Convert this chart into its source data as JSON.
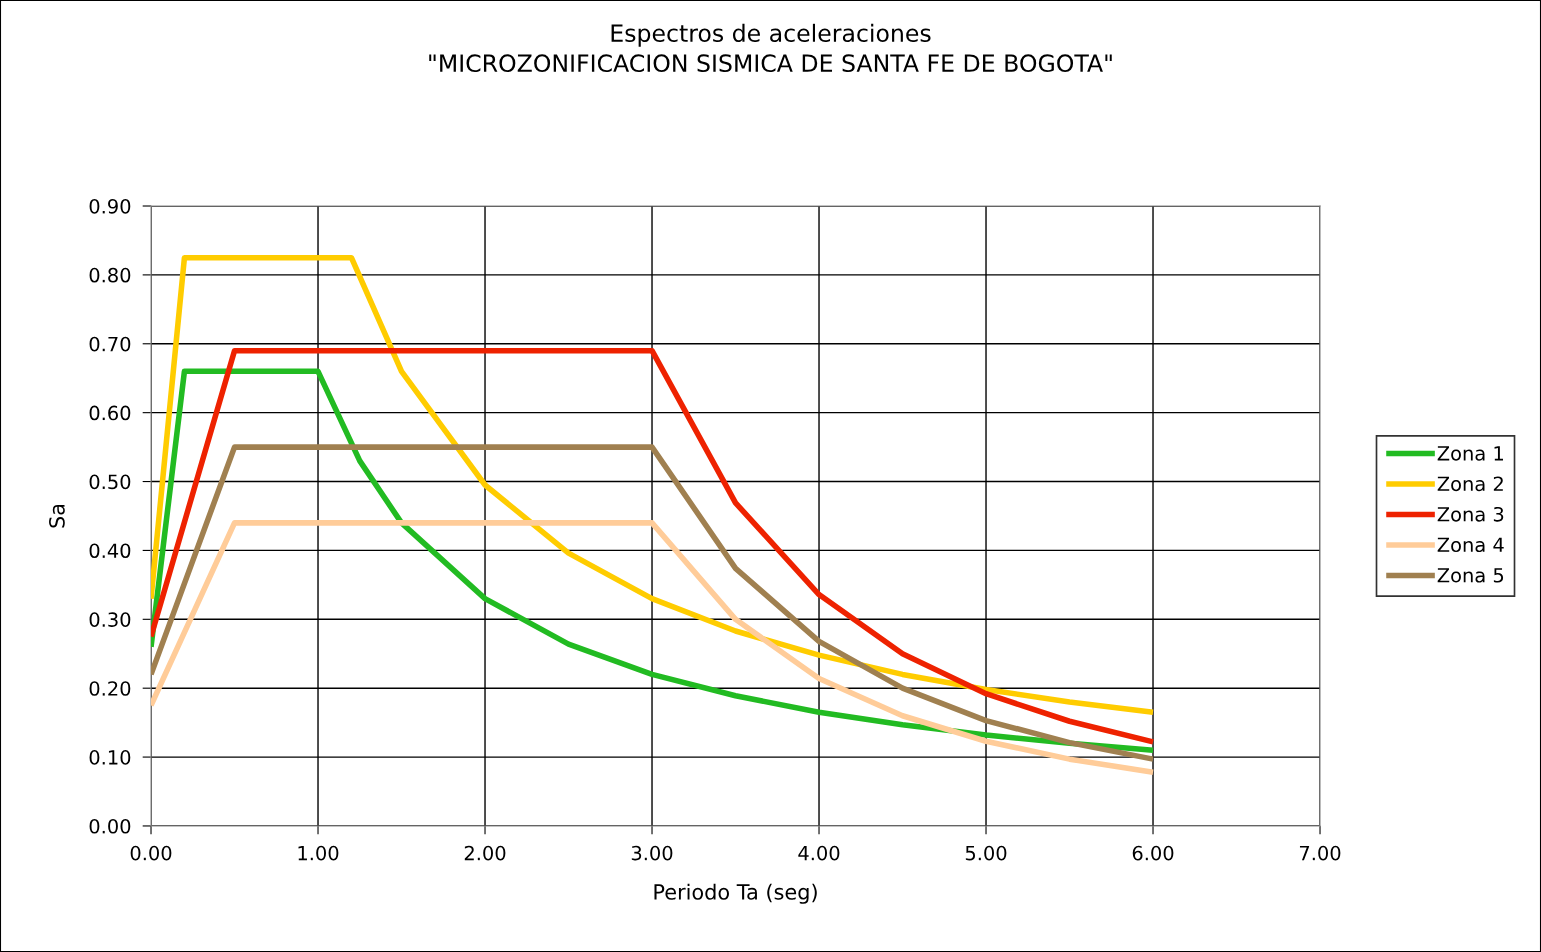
{
  "chart_data": {
    "type": "line",
    "title": "Espectros de aceleraciones\n\"MICROZONIFICACION SISMICA DE SANTA FE DE BOGOTA\"",
    "xlabel": "Periodo Ta (seg)",
    "ylabel": "Sa",
    "series": [
      {
        "name": "Zona 1",
        "color": "#22bb22",
        "x": [
          0,
          0.2,
          1.0,
          1.25,
          1.5,
          2.0,
          2.5,
          3.0,
          3.5,
          4.0,
          4.5,
          5.0,
          5.5,
          6.0
        ],
        "values": [
          0.26,
          0.66,
          0.66,
          0.53,
          0.44,
          0.33,
          0.264,
          0.22,
          0.189,
          0.165,
          0.147,
          0.132,
          0.12,
          0.11
        ]
      },
      {
        "name": "Zona 2",
        "color": "#ffcc00",
        "x": [
          0,
          0.2,
          1.2,
          1.5,
          2.0,
          2.5,
          3.0,
          3.5,
          4.0,
          4.5,
          5.0,
          5.5,
          6.0
        ],
        "values": [
          0.33,
          0.825,
          0.825,
          0.66,
          0.495,
          0.396,
          0.33,
          0.283,
          0.248,
          0.22,
          0.198,
          0.18,
          0.165
        ]
      },
      {
        "name": "Zona 3",
        "color": "#ee2200",
        "x": [
          0,
          0.5,
          3.0,
          3.5,
          4.0,
          4.5,
          5.0,
          5.5,
          6.0
        ],
        "values": [
          0.275,
          0.69,
          0.69,
          0.469,
          0.336,
          0.25,
          0.192,
          0.152,
          0.122
        ]
      },
      {
        "name": "Zona 4",
        "color": "#ffcc99",
        "x": [
          0,
          0.5,
          3.0,
          3.5,
          4.0,
          4.5,
          5.0,
          5.5,
          6.0
        ],
        "values": [
          0.175,
          0.44,
          0.44,
          0.3,
          0.214,
          0.16,
          0.123,
          0.097,
          0.078
        ]
      },
      {
        "name": "Zona 5",
        "color": "#a08050",
        "x": [
          0,
          0.5,
          3.0,
          3.5,
          4.0,
          4.5,
          5.0,
          5.5,
          6.0
        ],
        "values": [
          0.22,
          0.55,
          0.55,
          0.374,
          0.268,
          0.2,
          0.153,
          0.121,
          0.097
        ]
      }
    ],
    "xlim": [
      0,
      7
    ],
    "xticks": [
      {
        "value": 0,
        "label": "0.00"
      },
      {
        "value": 1,
        "label": "1.00"
      },
      {
        "value": 2,
        "label": "2.00"
      },
      {
        "value": 3,
        "label": "3.00"
      },
      {
        "value": 4,
        "label": "4.00"
      },
      {
        "value": 5,
        "label": "5.00"
      },
      {
        "value": 6,
        "label": "6.00"
      },
      {
        "value": 7,
        "label": "7.00"
      }
    ],
    "ylim": [
      0,
      0.9
    ],
    "yticks": [
      {
        "value": 0,
        "label": "0.00"
      },
      {
        "value": 0.1,
        "label": "0.10"
      },
      {
        "value": 0.2,
        "label": "0.20"
      },
      {
        "value": 0.3,
        "label": "0.30"
      },
      {
        "value": 0.4,
        "label": "0.40"
      },
      {
        "value": 0.5,
        "label": "0.50"
      },
      {
        "value": 0.6,
        "label": "0.60"
      },
      {
        "value": 0.7,
        "label": "0.70"
      },
      {
        "value": 0.8,
        "label": "0.80"
      },
      {
        "value": 0.9,
        "label": "0.90"
      }
    ],
    "grid": true,
    "legend": "right",
    "marker": "none",
    "line_style": "solid"
  }
}
